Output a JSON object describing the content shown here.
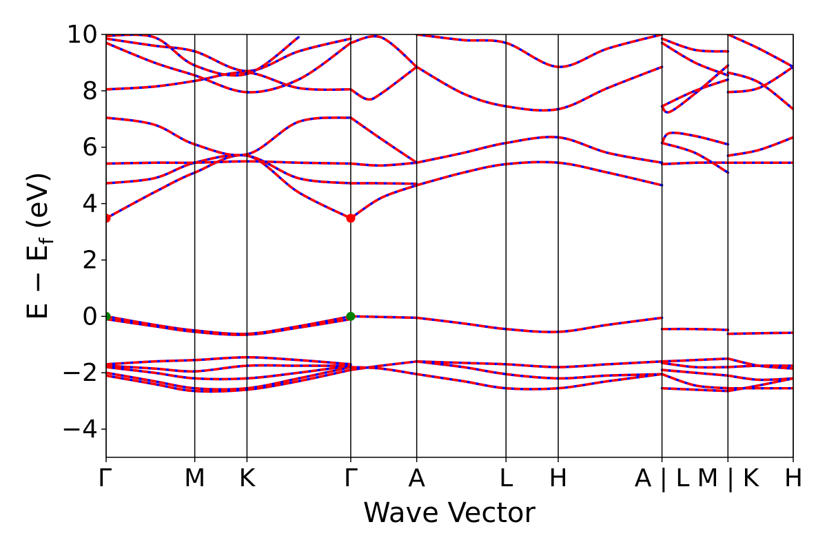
{
  "chart_data": {
    "type": "line",
    "title": "",
    "xlabel": "Wave Vector",
    "ylabel_parts": {
      "main": "E − E",
      "sub": "f",
      "unit": " (eV)"
    },
    "ylim": [
      -5,
      10
    ],
    "yticks": [
      -4,
      -2,
      0,
      2,
      4,
      6,
      8,
      10
    ],
    "ytick_labels": [
      "−4",
      "−2",
      "0",
      "2",
      "4",
      "6",
      "8",
      "10"
    ],
    "xlim": [
      0,
      1
    ],
    "kpath_positions": [
      0,
      0.129,
      0.205,
      0.356,
      0.452,
      0.582,
      0.658,
      0.809,
      0.905,
      1.0
    ],
    "kpath_labels": [
      {
        "x": 0.0,
        "text": "Γ"
      },
      {
        "x": 0.129,
        "text": "M"
      },
      {
        "x": 0.205,
        "text": "K"
      },
      {
        "x": 0.356,
        "text": "Γ"
      },
      {
        "x": 0.452,
        "text": "A"
      },
      {
        "x": 0.582,
        "text": "L"
      },
      {
        "x": 0.658,
        "text": "H"
      },
      {
        "x": 0.809,
        "text": "A | L"
      },
      {
        "x": 0.905,
        "text": "M | K"
      },
      {
        "x": 1.0,
        "text": "H"
      }
    ],
    "grid": false,
    "line_style": {
      "primary_color": "#0000ff",
      "overlay_color": "#ff0000",
      "overlay_dashed": true
    },
    "markers": [
      {
        "name": "CBM",
        "color": "#ff0000",
        "points": [
          [
            0.0,
            3.48
          ],
          [
            0.356,
            3.48
          ]
        ]
      },
      {
        "name": "VBM",
        "color": "#008000",
        "points": [
          [
            0.0,
            0.0
          ],
          [
            0.356,
            0.0
          ]
        ]
      }
    ],
    "bands": [
      {
        "x": [
          0,
          0.07,
          0.129,
          0.205,
          0.28,
          0.356
        ],
        "y": [
          -2.1,
          -2.4,
          -2.65,
          -2.6,
          -2.3,
          -1.9
        ]
      },
      {
        "x": [
          0,
          0.07,
          0.129,
          0.205,
          0.28,
          0.356
        ],
        "y": [
          -2.0,
          -2.3,
          -2.55,
          -2.55,
          -2.2,
          -1.8
        ]
      },
      {
        "x": [
          0,
          0.07,
          0.129,
          0.205,
          0.28,
          0.356
        ],
        "y": [
          -1.8,
          -2.0,
          -2.2,
          -2.2,
          -2.0,
          -1.75
        ]
      },
      {
        "x": [
          0,
          0.07,
          0.129,
          0.205,
          0.28,
          0.356
        ],
        "y": [
          -1.75,
          -1.85,
          -1.95,
          -1.75,
          -1.75,
          -1.75
        ]
      },
      {
        "x": [
          0,
          0.07,
          0.129,
          0.205,
          0.28,
          0.356
        ],
        "y": [
          -1.7,
          -1.6,
          -1.55,
          -1.45,
          -1.55,
          -1.7
        ]
      },
      {
        "x": [
          0,
          0.07,
          0.129,
          0.205,
          0.28,
          0.356
        ],
        "y": [
          0.0,
          -0.3,
          -0.5,
          -0.62,
          -0.35,
          0.0
        ]
      },
      {
        "x": [
          0,
          0.07,
          0.129,
          0.205,
          0.28,
          0.356
        ],
        "y": [
          -0.1,
          -0.35,
          -0.55,
          -0.65,
          -0.4,
          -0.1
        ]
      },
      {
        "x": [
          0,
          0.07,
          0.129,
          0.205,
          0.28,
          0.356
        ],
        "y": [
          3.48,
          4.4,
          5.1,
          5.7,
          4.4,
          3.48
        ]
      },
      {
        "x": [
          0,
          0.07,
          0.129,
          0.205,
          0.28,
          0.356
        ],
        "y": [
          4.72,
          4.9,
          5.45,
          5.7,
          4.9,
          4.72
        ]
      },
      {
        "x": [
          0,
          0.07,
          0.129,
          0.205,
          0.28,
          0.356
        ],
        "y": [
          5.42,
          5.45,
          5.45,
          5.5,
          5.45,
          5.42
        ]
      },
      {
        "x": [
          0,
          0.07,
          0.129,
          0.205,
          0.28,
          0.356
        ],
        "y": [
          7.05,
          6.8,
          6.1,
          5.75,
          6.9,
          7.05
        ]
      },
      {
        "x": [
          0,
          0.07,
          0.129,
          0.205,
          0.28,
          0.356
        ],
        "y": [
          8.05,
          8.15,
          8.35,
          8.65,
          8.1,
          8.05
        ]
      },
      {
        "x": [
          0,
          0.07,
          0.129,
          0.205,
          0.28,
          0.356
        ],
        "y": [
          9.7,
          9.0,
          8.55,
          7.95,
          8.4,
          9.7
        ]
      },
      {
        "x": [
          0,
          0.07,
          0.129,
          0.205,
          0.28,
          0.356
        ],
        "y": [
          9.85,
          9.6,
          9.4,
          8.7,
          9.4,
          9.85
        ]
      },
      {
        "x": [
          0,
          0.07,
          0.129,
          0.205,
          0.28
        ],
        "y": [
          9.95,
          9.9,
          8.9,
          8.6,
          9.9
        ]
      },
      {
        "x": [
          0.356,
          0.4,
          0.452
        ],
        "y": [
          -1.9,
          -1.75,
          -1.6
        ]
      },
      {
        "x": [
          0.356,
          0.4,
          0.452
        ],
        "y": [
          -1.8,
          -1.85,
          -2.05
        ]
      },
      {
        "x": [
          0.356,
          0.4,
          0.452
        ],
        "y": [
          0.0,
          -0.02,
          -0.05
        ]
      },
      {
        "x": [
          0.356,
          0.4,
          0.452
        ],
        "y": [
          3.48,
          4.2,
          4.65
        ]
      },
      {
        "x": [
          0.356,
          0.4,
          0.452
        ],
        "y": [
          4.72,
          4.72,
          4.7
        ]
      },
      {
        "x": [
          0.356,
          0.4,
          0.452
        ],
        "y": [
          5.42,
          5.35,
          5.45
        ]
      },
      {
        "x": [
          0.356,
          0.4,
          0.452
        ],
        "y": [
          7.05,
          6.3,
          5.45
        ]
      },
      {
        "x": [
          0.356,
          0.38,
          0.4,
          0.452
        ],
        "y": [
          8.05,
          7.7,
          7.9,
          8.85
        ]
      },
      {
        "x": [
          0.356,
          0.4,
          0.452
        ],
        "y": [
          9.7,
          9.9,
          8.85
        ]
      },
      {
        "x": [
          0.452,
          0.52,
          0.582,
          0.658,
          0.73,
          0.809
        ],
        "y": [
          -1.6,
          -1.65,
          -1.7,
          -1.8,
          -1.7,
          -1.6
        ]
      },
      {
        "x": [
          0.452,
          0.52,
          0.582,
          0.658,
          0.73,
          0.809
        ],
        "y": [
          -1.6,
          -1.8,
          -2.05,
          -2.2,
          -2.1,
          -2.05
        ]
      },
      {
        "x": [
          0.452,
          0.52,
          0.582,
          0.658,
          0.73,
          0.809
        ],
        "y": [
          -2.05,
          -2.3,
          -2.55,
          -2.55,
          -2.3,
          -2.05
        ]
      },
      {
        "x": [
          0.452,
          0.52,
          0.582,
          0.658,
          0.73,
          0.809
        ],
        "y": [
          -0.05,
          -0.25,
          -0.45,
          -0.55,
          -0.3,
          -0.05
        ]
      },
      {
        "x": [
          0.452,
          0.52,
          0.582,
          0.658,
          0.73,
          0.809
        ],
        "y": [
          4.65,
          5.1,
          5.4,
          5.45,
          5.1,
          4.65
        ]
      },
      {
        "x": [
          0.452,
          0.52,
          0.582,
          0.658,
          0.73,
          0.809
        ],
        "y": [
          5.45,
          5.8,
          6.15,
          6.35,
          5.8,
          5.45
        ]
      },
      {
        "x": [
          0.452,
          0.52,
          0.582,
          0.658,
          0.73,
          0.809
        ],
        "y": [
          8.85,
          7.9,
          7.45,
          7.35,
          8.1,
          8.85
        ]
      },
      {
        "x": [
          0.452,
          0.52,
          0.582,
          0.658,
          0.73,
          0.809
        ],
        "y": [
          10.0,
          9.8,
          9.7,
          8.85,
          9.5,
          10.0
        ]
      },
      {
        "x": [
          0.809,
          0.857,
          0.905
        ],
        "y": [
          -1.6,
          -1.55,
          -1.5
        ]
      },
      {
        "x": [
          0.809,
          0.857,
          0.905
        ],
        "y": [
          -1.65,
          -1.8,
          -1.8
        ]
      },
      {
        "x": [
          0.809,
          0.857,
          0.905
        ],
        "y": [
          -1.9,
          -2.0,
          -2.1
        ]
      },
      {
        "x": [
          0.809,
          0.857,
          0.905
        ],
        "y": [
          -2.05,
          -2.45,
          -2.55
        ]
      },
      {
        "x": [
          0.809,
          0.857,
          0.905
        ],
        "y": [
          -2.55,
          -2.6,
          -2.65
        ]
      },
      {
        "x": [
          0.809,
          0.857,
          0.905
        ],
        "y": [
          -0.45,
          -0.45,
          -0.48
        ]
      },
      {
        "x": [
          0.809,
          0.857,
          0.905
        ],
        "y": [
          5.4,
          5.45,
          5.45
        ]
      },
      {
        "x": [
          0.809,
          0.857,
          0.905
        ],
        "y": [
          6.15,
          5.8,
          5.1
        ]
      },
      {
        "x": [
          0.809,
          0.82,
          0.857,
          0.905
        ],
        "y": [
          6.15,
          6.5,
          6.4,
          6.1
        ]
      },
      {
        "x": [
          0.809,
          0.82,
          0.857,
          0.905
        ],
        "y": [
          7.45,
          7.25,
          7.9,
          8.9
        ]
      },
      {
        "x": [
          0.809,
          0.857,
          0.905
        ],
        "y": [
          7.45,
          8.0,
          8.4
        ]
      },
      {
        "x": [
          0.809,
          0.857,
          0.905
        ],
        "y": [
          9.7,
          9.0,
          8.55
        ]
      },
      {
        "x": [
          0.809,
          0.857,
          0.905
        ],
        "y": [
          9.85,
          9.45,
          9.4
        ]
      },
      {
        "x": [
          0.905,
          0.95,
          1.0
        ],
        "y": [
          -1.5,
          -1.75,
          -1.85
        ]
      },
      {
        "x": [
          0.905,
          0.95,
          1.0
        ],
        "y": [
          -1.8,
          -1.75,
          -1.75
        ]
      },
      {
        "x": [
          0.905,
          0.95,
          1.0
        ],
        "y": [
          -2.1,
          -2.25,
          -2.2
        ]
      },
      {
        "x": [
          0.905,
          0.95,
          1.0
        ],
        "y": [
          -2.55,
          -2.55,
          -2.55
        ]
      },
      {
        "x": [
          0.905,
          0.95,
          1.0
        ],
        "y": [
          -2.65,
          -2.45,
          -2.2
        ]
      },
      {
        "x": [
          0.905,
          0.95,
          1.0
        ],
        "y": [
          -0.62,
          -0.6,
          -0.58
        ]
      },
      {
        "x": [
          0.905,
          0.95,
          1.0
        ],
        "y": [
          5.45,
          5.45,
          5.45
        ]
      },
      {
        "x": [
          0.905,
          0.95,
          1.0
        ],
        "y": [
          5.7,
          5.9,
          6.35
        ]
      },
      {
        "x": [
          0.905,
          0.95,
          1.0
        ],
        "y": [
          7.95,
          8.1,
          8.85
        ]
      },
      {
        "x": [
          0.905,
          0.95,
          1.0
        ],
        "y": [
          8.65,
          8.3,
          7.35
        ]
      },
      {
        "x": [
          0.905,
          0.95,
          1.0
        ],
        "y": [
          10.0,
          9.5,
          8.85
        ]
      }
    ]
  }
}
